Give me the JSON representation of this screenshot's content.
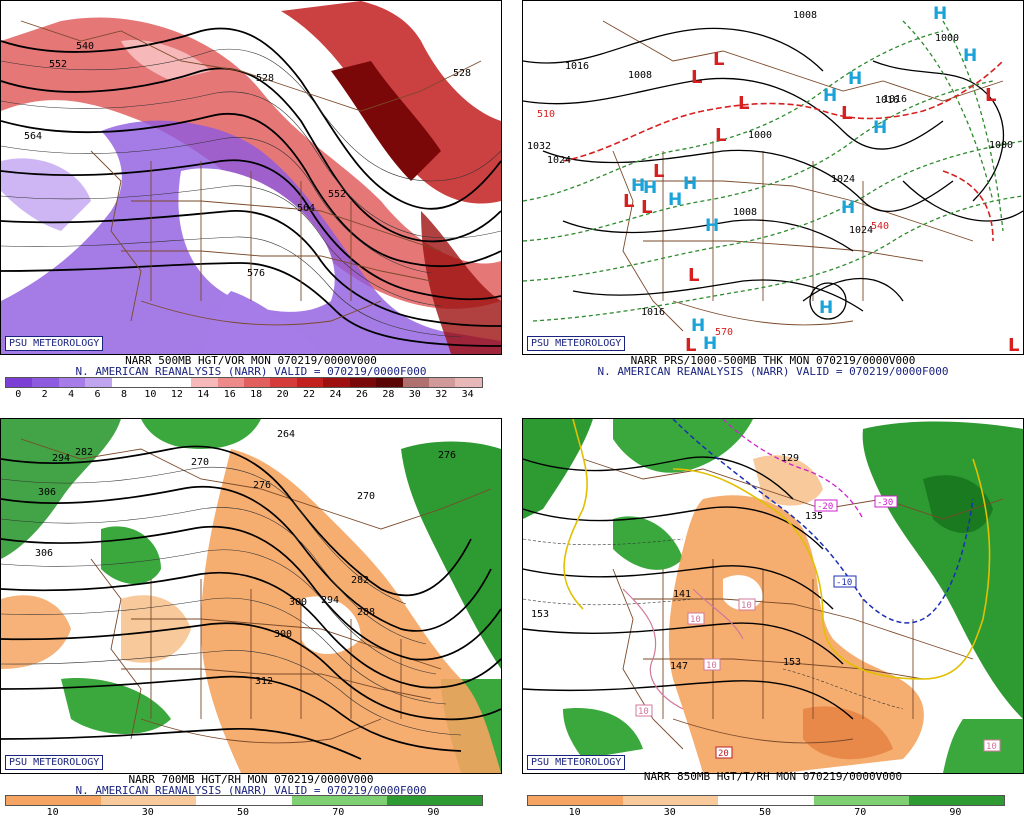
{
  "branding": "PSU METEOROLOGY",
  "panels": [
    {
      "id": "vor500",
      "title_line": "NARR 500MB HGT/VOR MON 070219/0000V000",
      "valid_line": "N. AMERICAN REANALYSIS (NARR) VALID = 070219/0000F000",
      "colorbar": {
        "ticks": [
          "0",
          "2",
          "4",
          "6",
          "8",
          "10",
          "12",
          "14",
          "16",
          "18",
          "20",
          "22",
          "24",
          "26",
          "28",
          "30",
          "32",
          "34"
        ],
        "colors": [
          "#7b3fd6",
          "#8e5ae0",
          "#a57ce8",
          "#c0a4f0",
          "#ffffff",
          "#ffffff",
          "#ffffff",
          "#f6b8b8",
          "#ee8a8a",
          "#e25f5f",
          "#d53b3b",
          "#c21f1f",
          "#9e1010",
          "#7a0808",
          "#5a0404",
          "#b07070",
          "#d09a9a",
          "#e8b8b8"
        ]
      },
      "contour_labels": [
        "540",
        "552",
        "564",
        "528",
        "528",
        "552",
        "564",
        "576"
      ]
    },
    {
      "id": "thk",
      "title_line": "NARR PRS/1000-500MB THK MON 070219/0000V000",
      "valid_line": "N. AMERICAN REANALYSIS (NARR) VALID = 070219/0000F000",
      "pressure_labels": [
        "1008",
        "1016",
        "1008",
        "1024",
        "1000",
        "1016",
        "1008",
        "1024",
        "1016",
        "1000",
        "1000",
        "1024",
        "1016",
        "1032"
      ],
      "thickness_labels": [
        "510",
        "540",
        "570"
      ],
      "lows": 12,
      "highs": 14
    },
    {
      "id": "rh700",
      "title_line": "NARR 700MB HGT/RH MON 070219/0000V000",
      "valid_line": "N. AMERICAN REANALYSIS (NARR) VALID = 070219/0000F000",
      "colorbar": {
        "ticks": [
          "10",
          "30",
          "50",
          "70",
          "90"
        ],
        "colors": [
          "#f5a461",
          "#f8c99a",
          "#ffffff",
          "#7fcf73",
          "#2e9a32"
        ]
      },
      "contour_labels": [
        "264",
        "270",
        "276",
        "270",
        "282",
        "288",
        "294",
        "300",
        "300",
        "306",
        "312",
        "294",
        "282",
        "276",
        "306"
      ]
    },
    {
      "id": "t850",
      "title_line": "NARR 850MB HGT/T/RH MON 070219/0000V000",
      "valid_line": "",
      "colorbar": {
        "ticks": [
          "10",
          "30",
          "50",
          "70",
          "90"
        ],
        "colors": [
          "#f5a461",
          "#f8c99a",
          "#ffffff",
          "#7fcf73",
          "#2e9a32"
        ]
      },
      "contour_labels": [
        "129",
        "135",
        "141",
        "147",
        "153",
        "153"
      ],
      "temp_labels": [
        "-20",
        "-30",
        "-10",
        "10",
        "10",
        "10",
        "10",
        "20",
        "10"
      ]
    }
  ]
}
